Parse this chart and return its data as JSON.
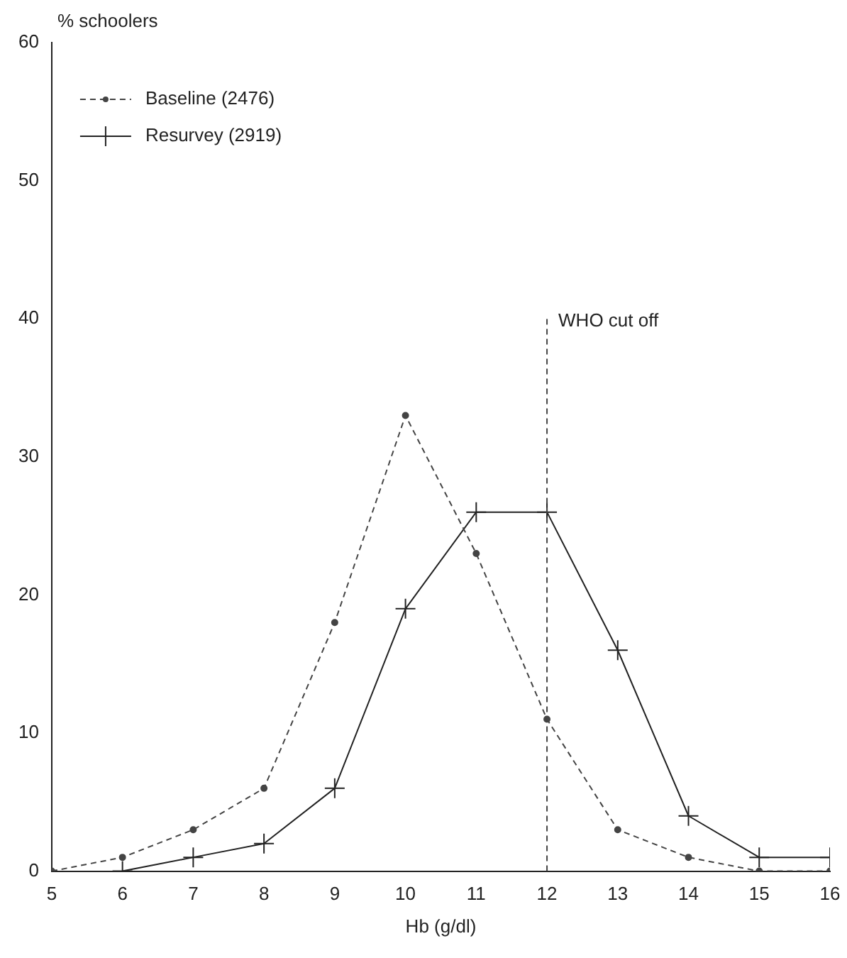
{
  "chart_data": {
    "type": "line",
    "xlabel": "Hb (g/dl)",
    "ylabel": "% schoolers",
    "xlim": [
      5,
      16
    ],
    "xticks": [
      5,
      6,
      7,
      8,
      9,
      10,
      11,
      12,
      13,
      14,
      15,
      16
    ],
    "ylim": [
      0,
      60
    ],
    "yticks": [
      0,
      10,
      20,
      30,
      40,
      50,
      60
    ],
    "grid": false,
    "legend": "top left",
    "series": [
      {
        "name": "Baseline (2476)",
        "color": "#444444",
        "marker": "circle",
        "line_style": "dashed",
        "x": [
          5,
          6,
          7,
          8,
          9,
          10,
          11,
          12,
          13,
          14,
          15,
          16
        ],
        "values": [
          0,
          1,
          3,
          6,
          18,
          33,
          23,
          11,
          3,
          1,
          0,
          0
        ]
      },
      {
        "name": "Resurvey (2919)",
        "color": "#222222",
        "marker": "cross",
        "line_style": "solid",
        "x": [
          6,
          7,
          8,
          9,
          10,
          11,
          12,
          13,
          14,
          15,
          16
        ],
        "values": [
          0,
          1,
          2,
          6,
          19,
          26,
          26,
          16,
          4,
          1,
          1
        ]
      }
    ],
    "ref_lines": [
      {
        "axis": "x",
        "value": 12,
        "label": "WHO cut off",
        "line_style": "dashed",
        "color": "#444444"
      }
    ]
  }
}
